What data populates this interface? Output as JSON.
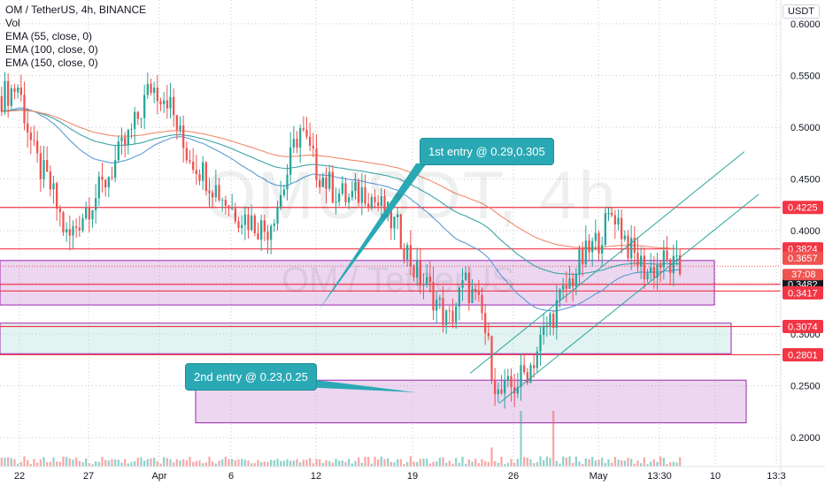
{
  "legend": {
    "symbol": "OM / TetherUS, 4h, BINANCE",
    "vol": "Vol",
    "ema1": "EMA (55, close, 0)",
    "ema2": "EMA (100, close, 0)",
    "ema3": "EMA (150, close, 0)"
  },
  "watermark": {
    "main": "OMUSDT, 4h",
    "sub": "OM / TetherUS"
  },
  "currency": "USDT",
  "annotations": {
    "first_entry": "1st entry @ 0.29,0.305",
    "second_entry": "2nd entry @ 0.23,0.25"
  },
  "colors": {
    "up": "#26a69a",
    "down": "#ef5350",
    "resistance": "#f23645",
    "zone_purple": "#e1bee7",
    "zone_teal": "#e0f2f1",
    "ema55": "#5b9bd5",
    "ema100": "#3ba4a8",
    "ema150": "#f08a6a",
    "callout": "#2aa9b5"
  },
  "chart_data": {
    "type": "candlestick",
    "title": "OM / TetherUS, 4h, BINANCE",
    "ylim": [
      0.172,
      0.623
    ],
    "y_ticks": [
      "0.6000",
      "0.5500",
      "0.5000",
      "0.4500",
      "0.4000",
      "0.3500",
      "0.3000",
      "0.2500",
      "0.2000"
    ],
    "x_ticks": [
      "22",
      "27",
      "Apr",
      "6",
      "12",
      "19",
      "26",
      "May",
      "13:30",
      "10",
      "13:3"
    ],
    "last_price": 0.3657,
    "countdown": "37:08",
    "horizontal_lines": [
      0.4225,
      0.3824,
      0.3482,
      0.3417,
      0.3074,
      0.2801
    ],
    "price_labels": [
      "0.4225",
      "0.3824",
      "0.3657",
      "0.3482",
      "0.3417",
      "0.3074",
      "0.2801"
    ],
    "zones": [
      {
        "from": 0.3282,
        "to": 0.3712,
        "color": "purple"
      },
      {
        "from": 0.2811,
        "to": 0.3106,
        "color": "teal"
      },
      {
        "from": 0.2143,
        "to": 0.2555,
        "color": "purple"
      }
    ],
    "channel_lines": [
      {
        "x1": "2021-04-23",
        "y1": 0.2622,
        "x2": "2021-05-12",
        "y2": 0.4764
      },
      {
        "x1": "2021-04-25",
        "y1": 0.2332,
        "x2": "2021-05-13",
        "y2": 0.4353
      }
    ],
    "close_path": [
      0.53,
      0.54,
      0.47,
      0.44,
      0.39,
      0.42,
      0.44,
      0.47,
      0.5,
      0.54,
      0.53,
      0.48,
      0.46,
      0.44,
      0.42,
      0.41,
      0.4,
      0.44,
      0.5,
      0.46,
      0.44,
      0.43,
      0.44,
      0.42,
      0.4,
      0.36,
      0.34,
      0.31,
      0.35,
      0.32,
      0.24,
      0.25,
      0.27,
      0.31,
      0.34,
      0.37,
      0.39,
      0.42,
      0.38,
      0.36,
      0.37,
      0.36
    ]
  }
}
